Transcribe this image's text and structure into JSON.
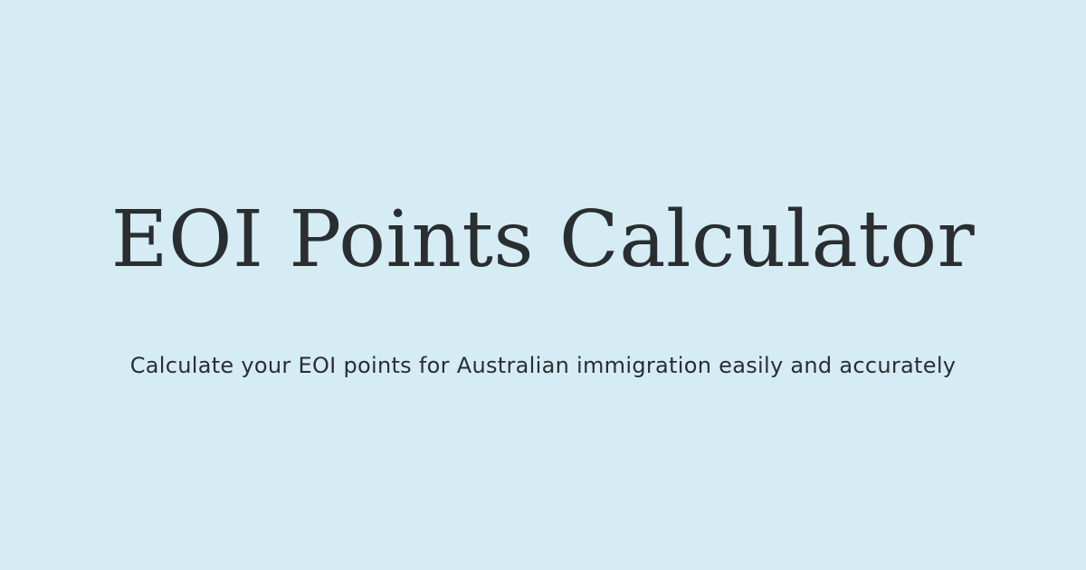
{
  "hero": {
    "title": "EOI Points Calculator",
    "subtitle": "Calculate your EOI points for Australian immigration easily and accurately"
  },
  "colors": {
    "background": "#d5ecf4",
    "text": "#2a2e31"
  }
}
